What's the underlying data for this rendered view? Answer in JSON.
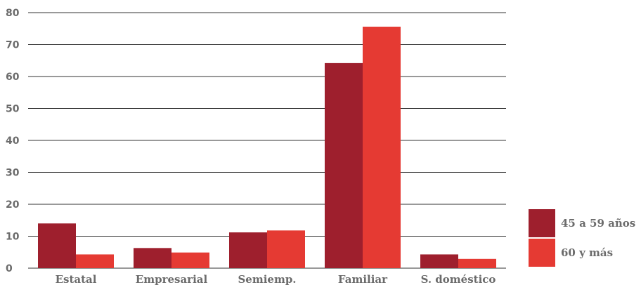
{
  "colors": {
    "series1": "#9e1f2d",
    "series2": "#e53a33",
    "axis_text": "#6b6b6b",
    "grid": "#333333"
  },
  "chart_data": {
    "type": "bar",
    "categories": [
      "Estatal",
      "Empresarial",
      "Semiemp.",
      "Familiar",
      "S. doméstico"
    ],
    "series": [
      {
        "name": "45 a 59 años",
        "values": [
          14.0,
          6.3,
          11.2,
          64.2,
          4.3
        ]
      },
      {
        "name": "60 y más",
        "values": [
          4.3,
          4.9,
          11.8,
          75.6,
          2.9
        ]
      }
    ],
    "title": "",
    "xlabel": "",
    "ylabel": "",
    "ylim": [
      0,
      80
    ],
    "yticks": [
      0,
      10,
      20,
      30,
      40,
      50,
      60,
      70,
      80
    ],
    "grid": true,
    "legend_position": "bottom-right"
  }
}
